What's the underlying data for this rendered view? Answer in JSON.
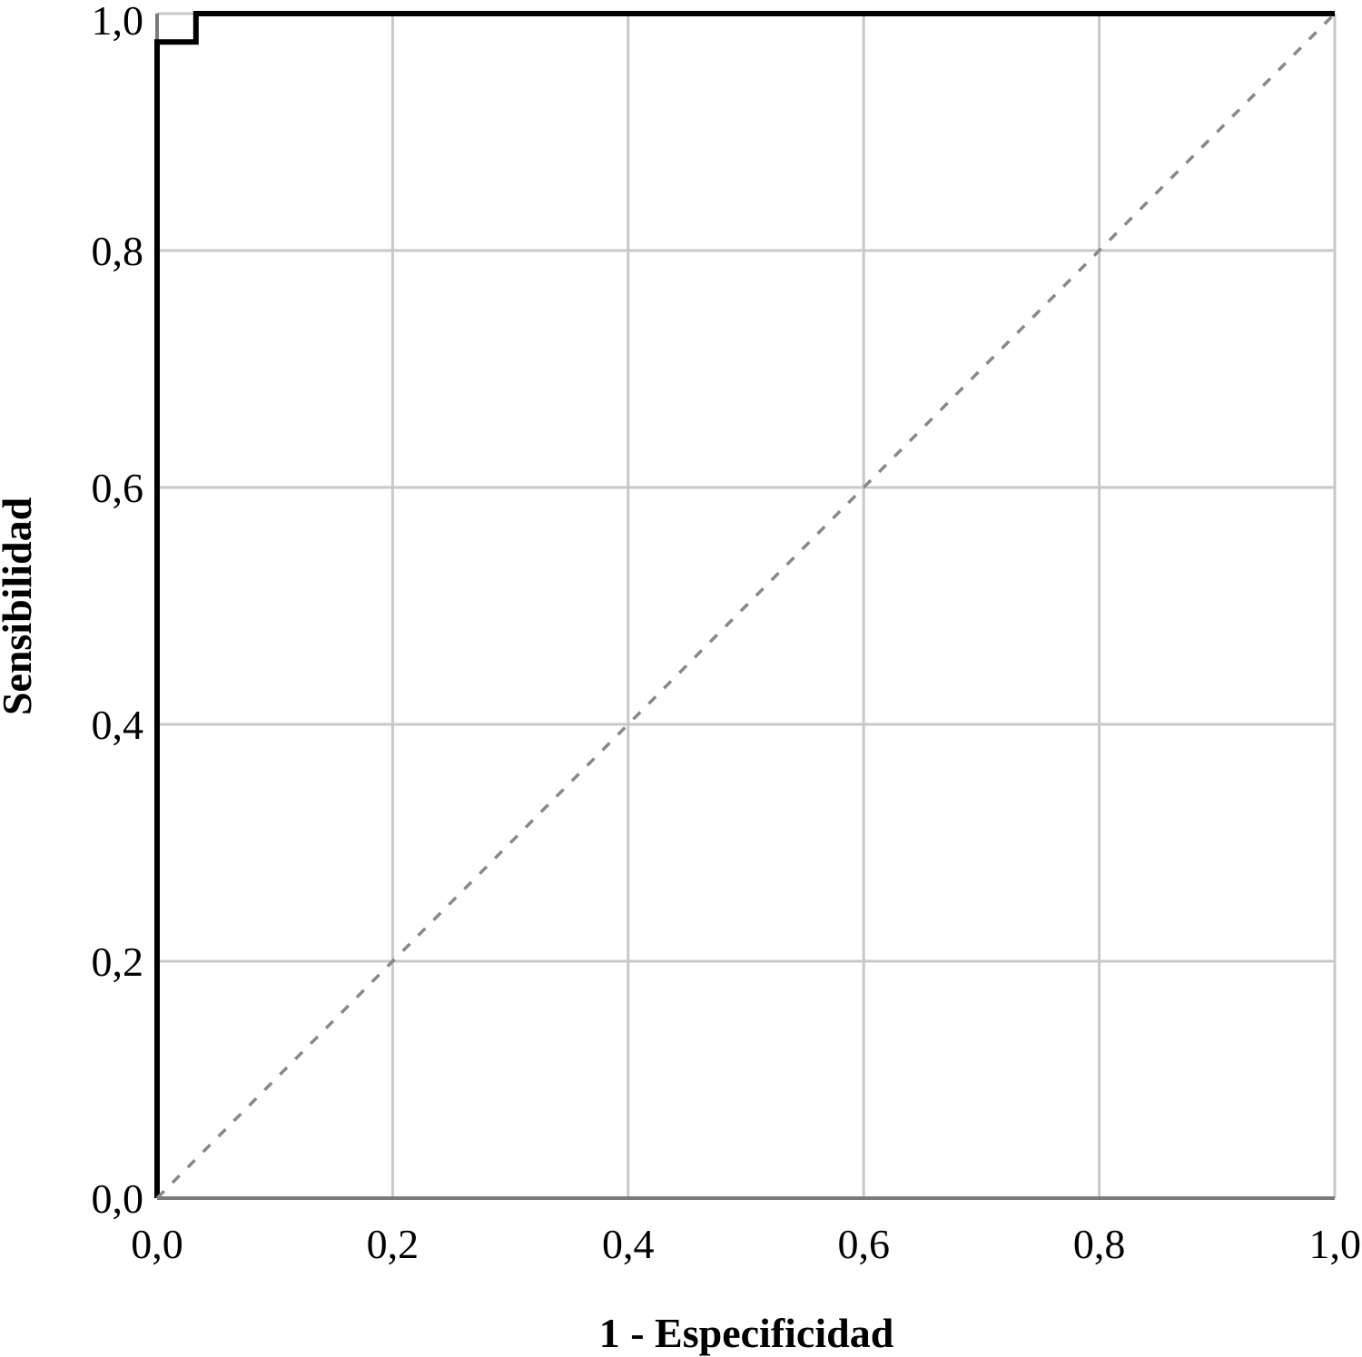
{
  "chart_data": {
    "type": "line",
    "title": "",
    "xlabel": "1 - Especificidad",
    "ylabel": "Sensibilidad",
    "xlim": [
      0,
      1
    ],
    "ylim": [
      0,
      1
    ],
    "x_ticks": [
      "0,0",
      "0,2",
      "0,4",
      "0,6",
      "0,8",
      "1,0"
    ],
    "y_ticks": [
      "0,0",
      "0,2",
      "0,4",
      "0,6",
      "0,8",
      "1,0"
    ],
    "grid": true,
    "series": [
      {
        "style": "solid-step",
        "color": "#000000",
        "x": [
          0,
          0,
          0.033,
          0.033,
          1
        ],
        "y": [
          0,
          0.976,
          0.976,
          1,
          1
        ]
      },
      {
        "style": "dashed-diagonal",
        "color": "#888888",
        "x": [
          0,
          1
        ],
        "y": [
          0,
          1
        ]
      }
    ],
    "colors": {
      "grid": "#c8c8c8",
      "axis": "#7a7a7a",
      "curve": "#000000",
      "reference": "#888888"
    }
  }
}
